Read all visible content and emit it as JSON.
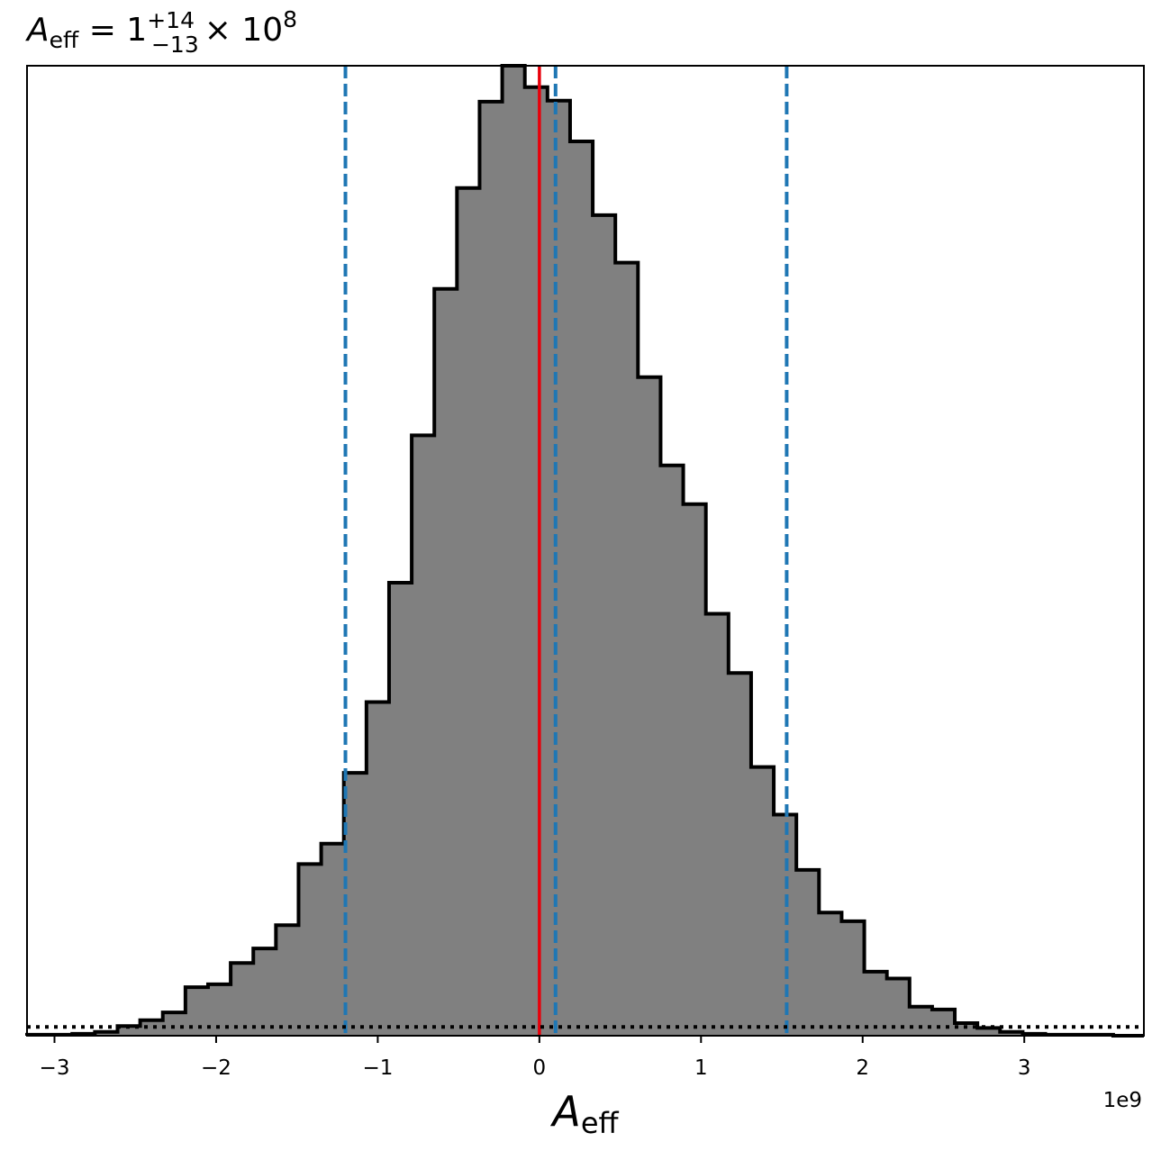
{
  "chart_data": {
    "type": "histogram",
    "title_parts": {
      "symbol": "A",
      "subscript": "eff",
      "equals": " = 1",
      "superscript": "+14",
      "lower_subscript": "−13",
      "times": "× 10",
      "exponent": "8"
    },
    "xlabel_parts": {
      "symbol": "A",
      "subscript": "eff"
    },
    "offset_text": "1e9",
    "x_scale_factor": 1000000000,
    "xlim": [
      -3.17,
      3.74
    ],
    "ylim": [
      0,
      1.0
    ],
    "x_ticks": [
      {
        "value": -3,
        "label": "−3"
      },
      {
        "value": -2,
        "label": "−2"
      },
      {
        "value": -1,
        "label": "−1"
      },
      {
        "value": 0,
        "label": "0"
      },
      {
        "value": 1,
        "label": "1"
      },
      {
        "value": 2,
        "label": "2"
      },
      {
        "value": 3,
        "label": "3"
      }
    ],
    "y_ticks_shown": false,
    "bin_edges": [
      -3.17,
      -3.03,
      -2.89,
      -2.75,
      -2.61,
      -2.47,
      -2.33,
      -2.19,
      -2.05,
      -1.91,
      -1.77,
      -1.63,
      -1.49,
      -1.35,
      -1.21,
      -1.07,
      -0.93,
      -0.79,
      -0.65,
      -0.51,
      -0.37,
      -0.23,
      -0.09,
      0.05,
      0.19,
      0.33,
      0.47,
      0.61,
      0.75,
      0.89,
      1.03,
      1.17,
      1.31,
      1.45,
      1.59,
      1.73,
      1.87,
      2.01,
      2.15,
      2.29,
      2.43,
      2.57,
      2.71,
      2.85,
      2.99,
      3.13,
      3.27,
      3.41,
      3.55,
      3.74
    ],
    "counts": [
      0.001,
      0.001,
      0.002,
      0.004,
      0.01,
      0.016,
      0.024,
      0.05,
      0.053,
      0.075,
      0.09,
      0.114,
      0.177,
      0.198,
      0.271,
      0.344,
      0.467,
      0.619,
      0.77,
      0.874,
      0.963,
      1.0,
      0.978,
      0.964,
      0.922,
      0.846,
      0.797,
      0.679,
      0.588,
      0.548,
      0.435,
      0.374,
      0.277,
      0.228,
      0.171,
      0.127,
      0.118,
      0.066,
      0.059,
      0.03,
      0.027,
      0.013,
      0.008,
      0.004,
      0.002,
      0.001,
      0.001,
      0.001,
      0.0
    ],
    "series": [
      {
        "kind": "histogram",
        "fill_color": "#808080",
        "edge_color": "#000000"
      }
    ],
    "reference_lines": [
      {
        "kind": "vertical",
        "x": 0.0,
        "style": "solid",
        "color": "#e8000b"
      },
      {
        "kind": "vertical",
        "x": -1.2,
        "style": "dashed",
        "color": "#1f77b4"
      },
      {
        "kind": "vertical",
        "x": 0.1,
        "style": "dashed",
        "color": "#1f77b4"
      },
      {
        "kind": "vertical",
        "x": 1.53,
        "style": "dashed",
        "color": "#1f77b4"
      },
      {
        "kind": "horizontal",
        "y": 0.009,
        "style": "dotted",
        "color": "#000000"
      }
    ],
    "grid": false
  }
}
